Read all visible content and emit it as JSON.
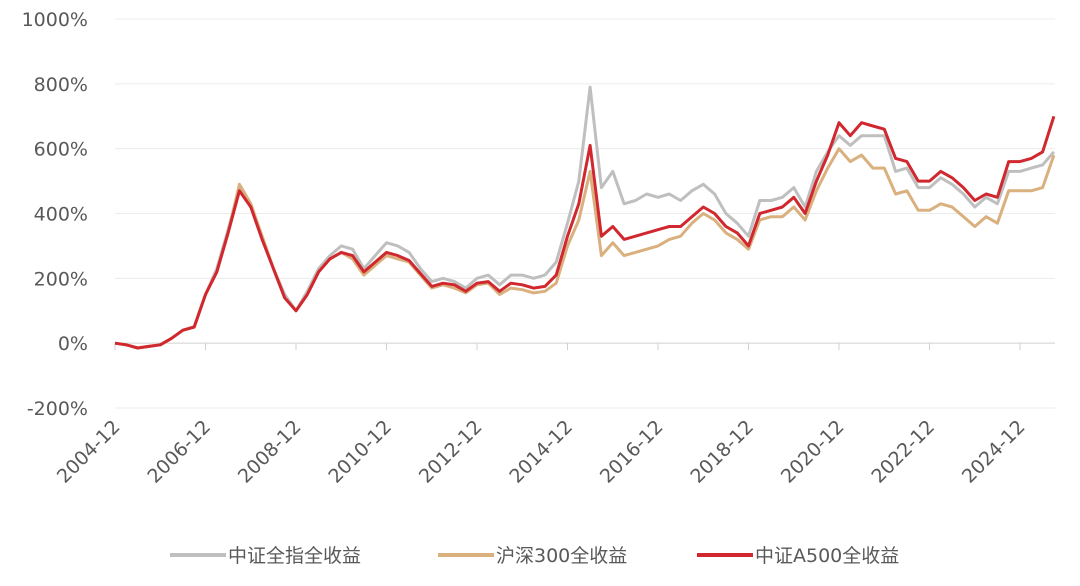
{
  "chart_data": {
    "type": "line",
    "x": [
      "2004-12",
      "2005-03",
      "2005-06",
      "2005-09",
      "2005-12",
      "2006-03",
      "2006-06",
      "2006-09",
      "2006-12",
      "2007-03",
      "2007-06",
      "2007-09",
      "2007-12",
      "2008-03",
      "2008-06",
      "2008-09",
      "2008-12",
      "2009-03",
      "2009-06",
      "2009-09",
      "2009-12",
      "2010-03",
      "2010-06",
      "2010-09",
      "2010-12",
      "2011-03",
      "2011-06",
      "2011-09",
      "2011-12",
      "2012-03",
      "2012-06",
      "2012-09",
      "2012-12",
      "2013-03",
      "2013-06",
      "2013-09",
      "2013-12",
      "2014-03",
      "2014-06",
      "2014-09",
      "2014-12",
      "2015-03",
      "2015-06",
      "2015-09",
      "2015-12",
      "2016-03",
      "2016-06",
      "2016-09",
      "2016-12",
      "2017-03",
      "2017-06",
      "2017-09",
      "2017-12",
      "2018-03",
      "2018-06",
      "2018-09",
      "2018-12",
      "2019-03",
      "2019-06",
      "2019-09",
      "2019-12",
      "2020-03",
      "2020-06",
      "2020-09",
      "2020-12",
      "2021-03",
      "2021-06",
      "2021-09",
      "2021-12",
      "2022-03",
      "2022-06",
      "2022-09",
      "2022-12",
      "2023-03",
      "2023-06",
      "2023-09",
      "2023-12",
      "2024-03",
      "2024-06",
      "2024-09",
      "2024-12",
      "2025-03",
      "2025-06",
      "2025-09"
    ],
    "series": [
      {
        "name": "中证全指全收益",
        "color": "#bfbfbf",
        "values": [
          0,
          -5,
          -15,
          -10,
          -5,
          15,
          40,
          50,
          150,
          230,
          350,
          480,
          420,
          330,
          230,
          150,
          100,
          160,
          230,
          270,
          300,
          290,
          230,
          270,
          310,
          300,
          280,
          230,
          190,
          200,
          190,
          170,
          200,
          210,
          180,
          210,
          210,
          200,
          210,
          250,
          370,
          500,
          790,
          480,
          530,
          430,
          440,
          460,
          450,
          460,
          440,
          470,
          490,
          460,
          400,
          370,
          330,
          440,
          440,
          450,
          480,
          420,
          530,
          590,
          640,
          610,
          640,
          640,
          640,
          530,
          540,
          480,
          480,
          510,
          490,
          460,
          420,
          450,
          430,
          530,
          530,
          540,
          550,
          590
        ]
      },
      {
        "name": "沪深300全收益",
        "color": "#d9b07e",
        "values": [
          0,
          -5,
          -15,
          -10,
          -5,
          15,
          40,
          50,
          150,
          220,
          340,
          490,
          430,
          330,
          230,
          140,
          100,
          150,
          220,
          260,
          280,
          260,
          210,
          240,
          270,
          260,
          250,
          210,
          170,
          180,
          170,
          155,
          180,
          185,
          150,
          170,
          165,
          155,
          160,
          185,
          300,
          380,
          530,
          270,
          310,
          270,
          280,
          290,
          300,
          320,
          330,
          370,
          400,
          380,
          340,
          320,
          290,
          380,
          390,
          390,
          420,
          380,
          470,
          540,
          600,
          560,
          580,
          540,
          540,
          460,
          470,
          410,
          410,
          430,
          420,
          390,
          360,
          390,
          370,
          470,
          470,
          470,
          480,
          580
        ]
      },
      {
        "name": "中证A500全收益",
        "color": "#d0282e",
        "values": [
          0,
          -5,
          -15,
          -10,
          -5,
          15,
          40,
          50,
          150,
          220,
          340,
          470,
          420,
          320,
          230,
          140,
          100,
          150,
          220,
          260,
          280,
          270,
          220,
          250,
          280,
          270,
          255,
          215,
          175,
          185,
          180,
          160,
          185,
          190,
          160,
          185,
          180,
          170,
          175,
          210,
          330,
          430,
          610,
          330,
          360,
          320,
          330,
          340,
          350,
          360,
          360,
          390,
          420,
          400,
          360,
          340,
          300,
          400,
          410,
          420,
          450,
          400,
          500,
          580,
          680,
          640,
          680,
          670,
          660,
          570,
          560,
          500,
          500,
          530,
          510,
          480,
          440,
          460,
          450,
          560,
          560,
          570,
          590,
          700
        ]
      }
    ],
    "ylim": [
      -200,
      1000
    ],
    "yticks": [
      {
        "value": -200,
        "label": "-200%"
      },
      {
        "value": 0,
        "label": "0%"
      },
      {
        "value": 200,
        "label": "200%"
      },
      {
        "value": 400,
        "label": "400%"
      },
      {
        "value": 600,
        "label": "600%"
      },
      {
        "value": 800,
        "label": "800%"
      },
      {
        "value": 1000,
        "label": "1000%"
      }
    ],
    "xticks": [
      "2004-12",
      "2006-12",
      "2008-12",
      "2010-12",
      "2012-12",
      "2014-12",
      "2016-12",
      "2018-12",
      "2020-12",
      "2022-12",
      "2024-12"
    ],
    "grid": true
  }
}
